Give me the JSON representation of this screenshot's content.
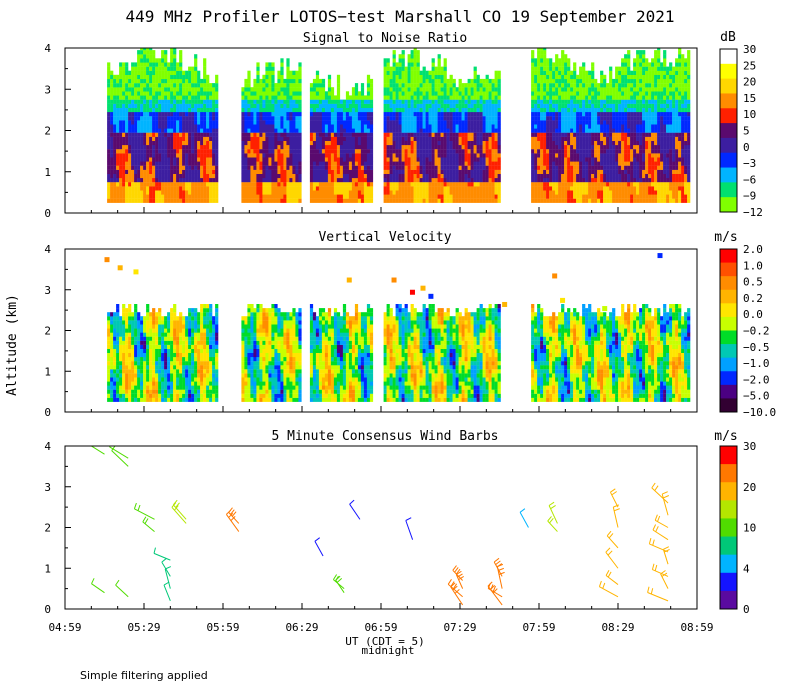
{
  "title": "449 MHz Profiler LOTOS−test Marshall CO 19 September 2021",
  "xlabel": "UT  (CDT = 5)",
  "xlabel_sub": "midnight",
  "ylabel": "Altitude (km)",
  "footnote": "Simple filtering applied",
  "x_ticks": [
    "04:59",
    "05:29",
    "05:59",
    "06:29",
    "06:59",
    "07:29",
    "07:59",
    "08:29",
    "08:59"
  ],
  "y_ticks": [
    "0",
    "1",
    "2",
    "3",
    "4"
  ],
  "panels": {
    "snr": {
      "title": "Signal to Noise Ratio",
      "unit": "dB",
      "colorbar_labels": [
        "30",
        "25",
        "20",
        "15",
        "10",
        "5",
        "0",
        "−3",
        "−6",
        "−9",
        "−12"
      ],
      "colorbar_colors": [
        "#ffffff",
        "#ffff00",
        "#ffd700",
        "#ff8c00",
        "#ff2000",
        "#5a0a6e",
        "#3c1ea0",
        "#0028ff",
        "#00b4ff",
        "#00e070",
        "#80ff00"
      ]
    },
    "vv": {
      "title": "Vertical Velocity",
      "unit": "m/s",
      "colorbar_labels": [
        "2.0",
        "1.0",
        "0.5",
        "0.2",
        "0.0",
        "−0.2",
        "−0.5",
        "−1.0",
        "−2.0",
        "−5.0",
        "−10.0"
      ],
      "colorbar_colors": [
        "#ff0000",
        "#ff5000",
        "#ff8c00",
        "#ffb400",
        "#ffe600",
        "#c8ff00",
        "#00dc28",
        "#00c8b4",
        "#00a0ff",
        "#0028ff",
        "#4b0082",
        "#320032"
      ]
    },
    "wind": {
      "title": "5 Minute Consensus Wind Barbs",
      "unit": "m/s",
      "colorbar_labels": [
        "30",
        "20",
        "10",
        "4",
        "0"
      ],
      "colorbar_colors": [
        "#ff0000",
        "#ff7800",
        "#ffb400",
        "#b4e600",
        "#50dc00",
        "#00c878",
        "#00b4ff",
        "#1414ff",
        "#5a0aa0"
      ]
    }
  },
  "chart_data": [
    {
      "type": "heatmap",
      "title": "Signal to Noise Ratio",
      "xlabel": "UT  (CDT = 5)",
      "ylabel": "Altitude (km)",
      "x_range": [
        "04:59",
        "08:59"
      ],
      "ylim": [
        0,
        4
      ],
      "data_segments_ut": [
        [
          "05:15",
          "05:57"
        ],
        [
          "06:06",
          "06:28"
        ],
        [
          "06:32",
          "06:55"
        ],
        [
          "07:00",
          "07:44"
        ],
        [
          "07:56",
          "08:56"
        ]
      ],
      "approx_layer_top_km": 2.5,
      "approx_surface_layer_snr_db": "10-20"
    },
    {
      "type": "heatmap",
      "title": "Vertical Velocity",
      "xlabel": "UT  (CDT = 5)",
      "ylabel": "Altitude (km)",
      "x_range": [
        "04:59",
        "08:59"
      ],
      "ylim": [
        0,
        4
      ],
      "data_segments_ut": [
        [
          "05:15",
          "05:57"
        ],
        [
          "06:06",
          "06:28"
        ],
        [
          "06:32",
          "06:55"
        ],
        [
          "07:00",
          "07:44"
        ],
        [
          "07:56",
          "08:56"
        ]
      ],
      "approx_layer_top_km": 2.6,
      "approx_velocity_range_m_s": [
        -2.0,
        1.0
      ]
    },
    {
      "type": "scatter",
      "title": "5 Minute Consensus Wind Barbs",
      "xlabel": "UT  (CDT = 5)",
      "ylabel": "Altitude (km)",
      "x_range": [
        "04:59",
        "08:59"
      ],
      "ylim": [
        0,
        4
      ],
      "barb_groups": [
        {
          "time_ut": "05:14",
          "altitudes_km": [
            0.4,
            3.8
          ],
          "speed_m_s": 8
        },
        {
          "time_ut": "05:23",
          "altitudes_km": [
            0.3,
            3.5,
            3.7
          ],
          "speed_m_s": 8
        },
        {
          "time_ut": "05:33",
          "altitudes_km": [
            1.9,
            2.2
          ],
          "speed_m_s": 9
        },
        {
          "time_ut": "05:39",
          "altitudes_km": [
            0.2,
            0.5,
            0.8,
            1.2
          ],
          "speed_m_s": 5
        },
        {
          "time_ut": "05:45",
          "altitudes_km": [
            2.1,
            2.2
          ],
          "speed_m_s": 10
        },
        {
          "time_ut": "06:05",
          "altitudes_km": [
            1.9,
            2.1
          ],
          "speed_m_s": 18
        },
        {
          "time_ut": "06:37",
          "altitudes_km": [
            1.3
          ],
          "speed_m_s": 2
        },
        {
          "time_ut": "06:45",
          "altitudes_km": [
            0.4,
            0.5
          ],
          "speed_m_s": 9
        },
        {
          "time_ut": "06:51",
          "altitudes_km": [
            2.2
          ],
          "speed_m_s": 2
        },
        {
          "time_ut": "07:11",
          "altitudes_km": [
            1.7
          ],
          "speed_m_s": 2
        },
        {
          "time_ut": "07:30",
          "altitudes_km": [
            0.1,
            0.3,
            0.5,
            0.7
          ],
          "speed_m_s": 18
        },
        {
          "time_ut": "07:45",
          "altitudes_km": [
            0.1,
            0.3,
            0.5,
            0.8
          ],
          "speed_m_s": 17
        },
        {
          "time_ut": "07:55",
          "altitudes_km": [
            2.0
          ],
          "speed_m_s": 3
        },
        {
          "time_ut": "08:06",
          "altitudes_km": [
            1.9,
            2.1
          ],
          "speed_m_s": 10
        },
        {
          "time_ut": "08:29",
          "altitudes_km": [
            0.3,
            0.6,
            1.0,
            1.5,
            2.0,
            2.5
          ],
          "speed_m_s": 13
        },
        {
          "time_ut": "08:48",
          "altitudes_km": [
            0.2,
            0.5,
            0.8,
            1.1,
            1.4,
            1.7,
            2.0,
            2.3,
            2.6
          ],
          "speed_m_s": 14
        }
      ]
    }
  ]
}
